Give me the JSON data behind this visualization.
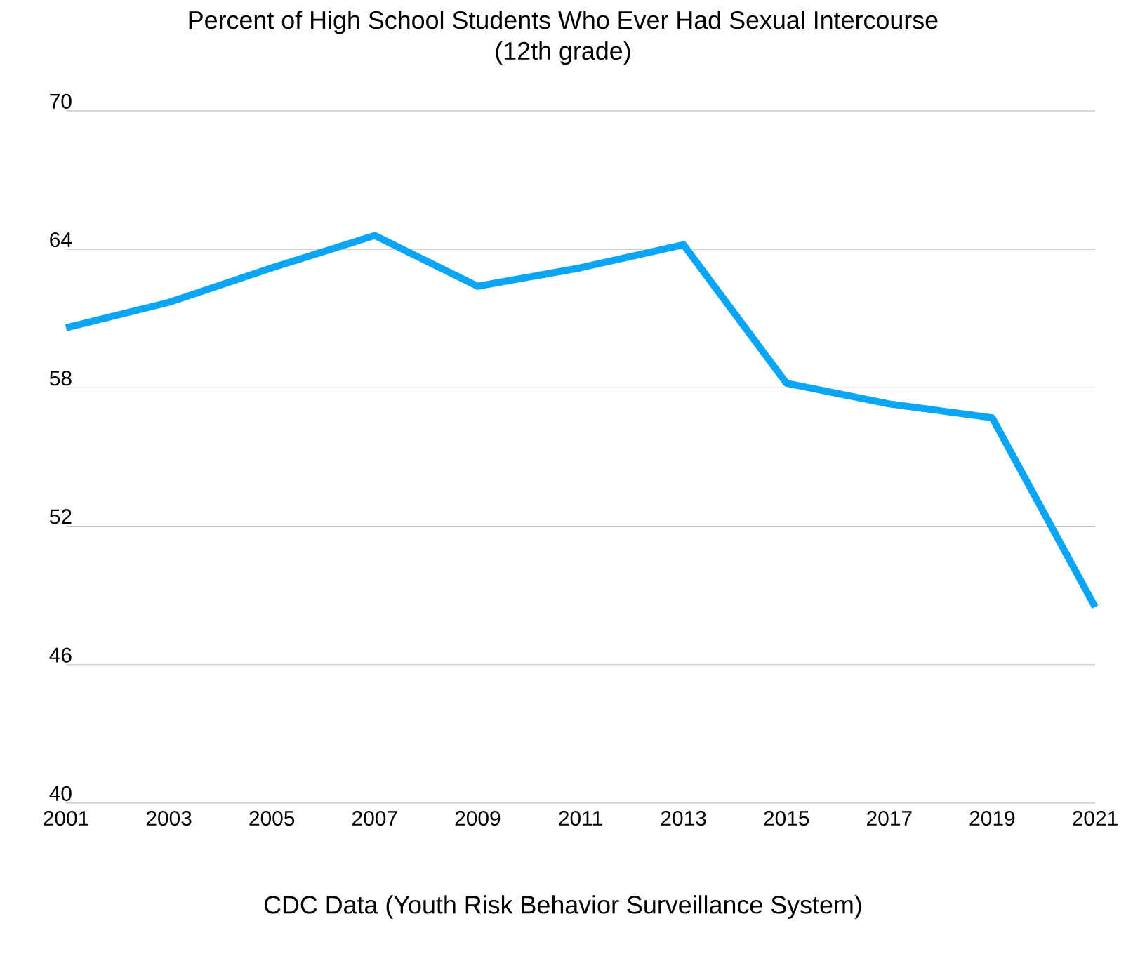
{
  "chart_data": {
    "type": "line",
    "title": "Percent of High School Students Who Ever Had Sexual Intercourse",
    "subtitle": "(12th grade)",
    "x": [
      2001,
      2003,
      2005,
      2007,
      2009,
      2011,
      2013,
      2015,
      2017,
      2019,
      2021
    ],
    "series": [
      {
        "color": "#0ba5f5",
        "values": [
          60.6,
          61.7,
          63.2,
          64.6,
          62.4,
          63.2,
          64.2,
          58.2,
          57.3,
          56.7,
          48.5
        ]
      }
    ],
    "xlim": [
      2001,
      2021
    ],
    "xticks": [
      2001,
      2003,
      2005,
      2007,
      2009,
      2011,
      2013,
      2015,
      2017,
      2019,
      2021
    ],
    "ylim": [
      40,
      70
    ],
    "yticks": [
      40,
      46,
      52,
      58,
      64,
      70
    ],
    "grid": "y",
    "marker": "none",
    "line_style": "solid",
    "annotations": [
      "CDC Data (Youth Risk Behavior Surveillance System)"
    ]
  }
}
